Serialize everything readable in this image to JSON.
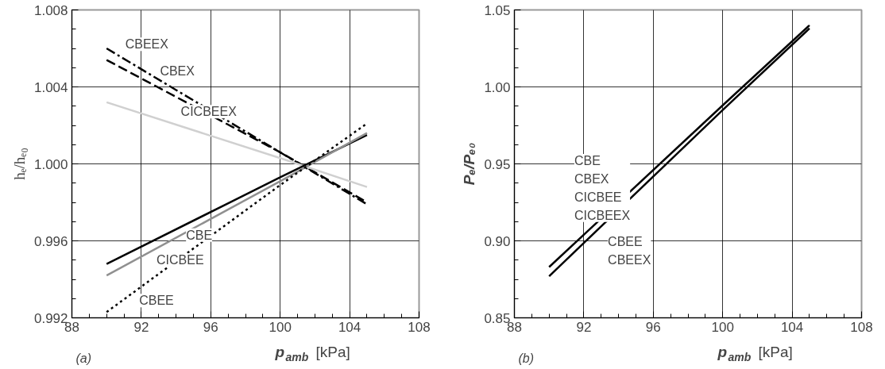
{
  "chart_data": [
    {
      "type": "line",
      "xlabel": "p$_{amb}$ [kPa]",
      "ylabel": "hₑ/hₑ₀",
      "xlim": [
        88,
        108
      ],
      "xticks": [
        88,
        92,
        96,
        100,
        104,
        108
      ],
      "ylim": [
        0.992,
        1.008
      ],
      "yticks": [
        {
          "value": 0.992,
          "label": "0.992"
        },
        {
          "value": 0.996,
          "label": "0.996"
        },
        {
          "value": 1.0,
          "label": "1.000"
        },
        {
          "value": 1.004,
          "label": "1.004"
        },
        {
          "value": 1.008,
          "label": "1.008"
        }
      ],
      "grid": true,
      "marker": "none",
      "series": [
        {
          "color": "#000000",
          "line_style": "dashdot",
          "x": [
            90,
            100,
            105
          ],
          "values": [
            1.006,
            1.0006,
            0.9979
          ]
        },
        {
          "color": "#000000",
          "line_style": "dashed",
          "x": [
            90,
            100,
            105
          ],
          "values": [
            1.0054,
            1.0006,
            0.998
          ]
        },
        {
          "color": "#d0d0d0",
          "line_style": "solid",
          "x": [
            90,
            100,
            105
          ],
          "values": [
            1.0032,
            1.0003,
            0.9988
          ]
        },
        {
          "color": "#000000",
          "line_style": "solid",
          "x": [
            90,
            100,
            105
          ],
          "values": [
            0.9948,
            0.9993,
            1.0015
          ]
        },
        {
          "color": "#909090",
          "line_style": "solid",
          "x": [
            90,
            100,
            105
          ],
          "values": [
            0.9942,
            0.9991,
            1.0016
          ]
        },
        {
          "color": "#000000",
          "line_style": "dotted",
          "x": [
            90,
            100,
            105
          ],
          "values": [
            0.9923,
            0.9989,
            1.0021
          ]
        }
      ],
      "annotations": [
        {
          "text": "CBEEX",
          "x": 90.8,
          "y": 1.0057
        },
        {
          "text": "CBEX",
          "x": 92.8,
          "y": 1.0043
        },
        {
          "text": "CICBEEX",
          "x": 94.0,
          "y": 1.0022
        },
        {
          "text": "CBE",
          "x": 94.3,
          "y": 0.9969
        },
        {
          "text": "CICBEE",
          "x": 92.6,
          "y": 0.9956
        },
        {
          "text": "CBEE",
          "x": 91.6,
          "y": 0.9935
        },
        "(a)"
      ]
    },
    {
      "type": "line",
      "xlabel": "p$_{amb}$ [kPa]",
      "ylabel": "Pₑ/Pₑ₀",
      "xlim": [
        88,
        108
      ],
      "xticks": [
        88,
        92,
        96,
        100,
        104,
        108
      ],
      "ylim": [
        0.85,
        1.05
      ],
      "yticks": [
        {
          "value": 0.85,
          "label": "0.85"
        },
        {
          "value": 0.9,
          "label": "0.90"
        },
        {
          "value": 0.95,
          "label": "0.95"
        },
        {
          "value": 1.0,
          "label": "1.00"
        },
        {
          "value": 1.05,
          "label": "1.05"
        }
      ],
      "grid": true,
      "marker": "none",
      "series": [
        {
          "color": "#000000",
          "line_style": "solid",
          "x": [
            90,
            100,
            105
          ],
          "values": [
            0.883,
            0.988,
            1.04
          ]
        },
        {
          "color": "#000000",
          "line_style": "solid",
          "x": [
            90,
            100,
            105
          ],
          "values": [
            0.877,
            0.985,
            1.038
          ]
        }
      ],
      "annotations": [
        {
          "text": "CBE\nCBEX\nCICBEE\nCICBEEX",
          "x": 92.0,
          "y": 0.904
        },
        {
          "text": "CBEE\nCBEEX",
          "x": 93.2,
          "y": 0.911
        },
        "(b)"
      ]
    }
  ]
}
